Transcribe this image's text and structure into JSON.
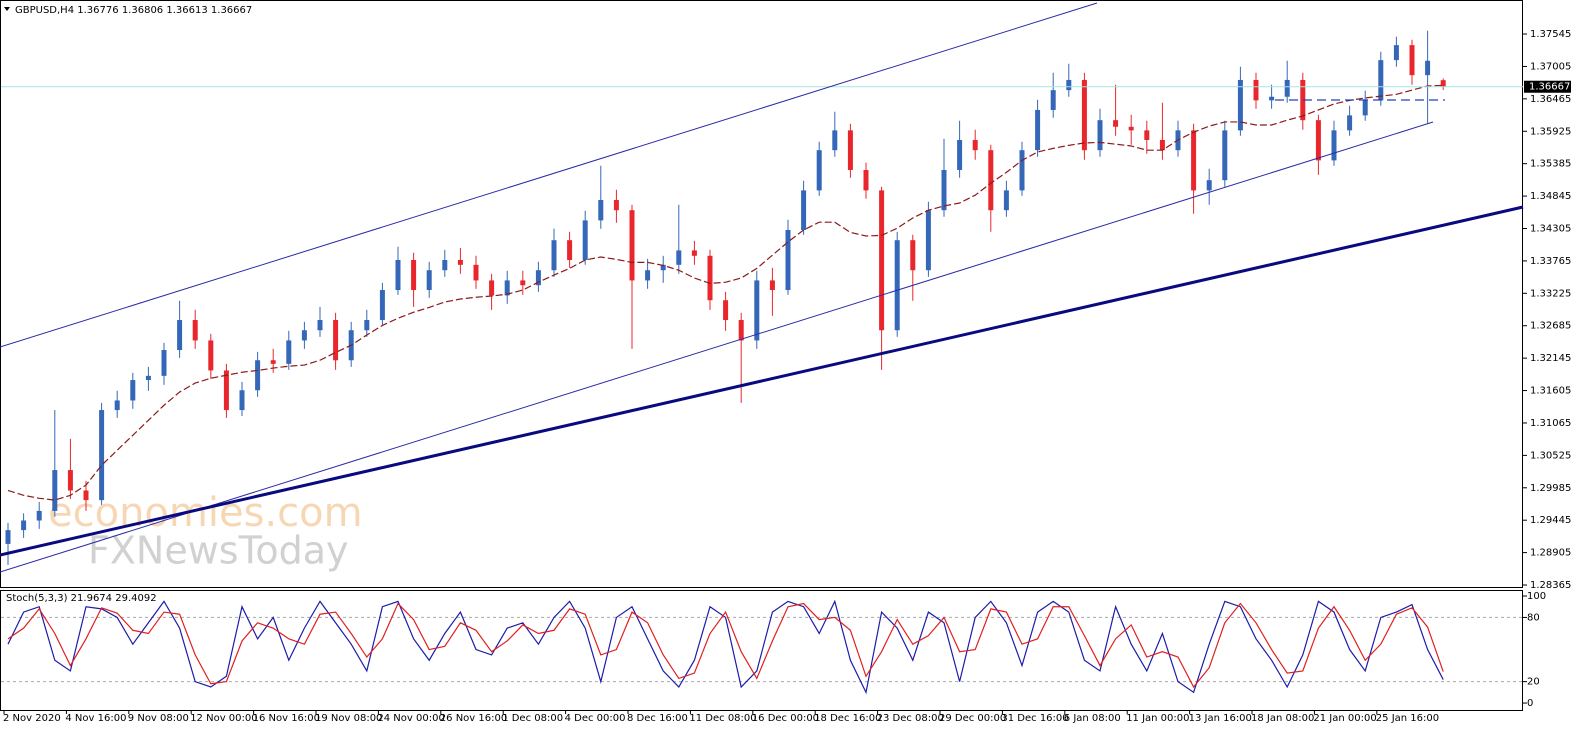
{
  "watermark": [
    "economies.com",
    "FXNewsToday"
  ],
  "chart_data": [
    {
      "type": "candlestick",
      "title": "GBPUSD,H4",
      "categories": [
        "2 Nov 2020",
        null,
        null,
        null,
        "4 Nov 16:00",
        null,
        null,
        null,
        "9 Nov 08:00",
        null,
        null,
        null,
        "12 Nov 00:00",
        null,
        null,
        null,
        "16 Nov 16:00",
        null,
        null,
        null,
        "19 Nov 08:00",
        null,
        null,
        null,
        "24 Nov 00:00",
        null,
        null,
        null,
        "26 Nov 16:00",
        null,
        null,
        null,
        "1 Dec 08:00",
        null,
        null,
        null,
        "4 Dec 00:00",
        null,
        null,
        null,
        "8 Dec 16:00",
        null,
        null,
        null,
        "11 Dec 08:00",
        null,
        null,
        null,
        "16 Dec 00:00",
        null,
        null,
        null,
        "18 Dec 16:00",
        null,
        null,
        null,
        "23 Dec 08:00",
        null,
        null,
        null,
        "29 Dec 00:00",
        null,
        null,
        null,
        "31 Dec 16:00",
        null,
        null,
        null,
        "6 Jan 08:00",
        null,
        null,
        null,
        "11 Jan 00:00",
        null,
        null,
        null,
        "13 Jan 16:00",
        null,
        null,
        null,
        "18 Jan 08:00",
        null,
        null,
        null,
        "21 Jan 00:00",
        null,
        null,
        null,
        "25 Jan 16:00",
        null,
        null,
        null,
        null
      ],
      "candles": [
        [
          1.2905,
          1.294,
          1.287,
          1.2928
        ],
        [
          1.2928,
          1.2956,
          1.2915,
          1.2944
        ],
        [
          1.2944,
          1.2975,
          1.293,
          1.296
        ],
        [
          1.296,
          1.3128,
          1.295,
          1.3028
        ],
        [
          1.3028,
          1.308,
          1.298,
          1.2994
        ],
        [
          1.2994,
          1.301,
          1.296,
          1.2978
        ],
        [
          1.2978,
          1.314,
          1.297,
          1.3128
        ],
        [
          1.3128,
          1.316,
          1.3115,
          1.3144
        ],
        [
          1.3144,
          1.319,
          1.313,
          1.3178
        ],
        [
          1.3178,
          1.32,
          1.316,
          1.3185
        ],
        [
          1.3185,
          1.324,
          1.317,
          1.3228
        ],
        [
          1.3228,
          1.331,
          1.3215,
          1.3278
        ],
        [
          1.3278,
          1.3295,
          1.323,
          1.3244
        ],
        [
          1.3244,
          1.3255,
          1.318,
          1.3194
        ],
        [
          1.3194,
          1.3205,
          1.3115,
          1.3128
        ],
        [
          1.3128,
          1.3175,
          1.3118,
          1.3161
        ],
        [
          1.3161,
          1.3225,
          1.315,
          1.3211
        ],
        [
          1.3211,
          1.323,
          1.319,
          1.3205
        ],
        [
          1.3205,
          1.326,
          1.3195,
          1.3244
        ],
        [
          1.3244,
          1.3275,
          1.323,
          1.3261
        ],
        [
          1.3261,
          1.33,
          1.325,
          1.3278
        ],
        [
          1.3278,
          1.329,
          1.3195,
          1.3211
        ],
        [
          1.3211,
          1.3275,
          1.32,
          1.3261
        ],
        [
          1.3261,
          1.3295,
          1.325,
          1.3278
        ],
        [
          1.3278,
          1.334,
          1.327,
          1.3328
        ],
        [
          1.3328,
          1.34,
          1.332,
          1.3378
        ],
        [
          1.3378,
          1.339,
          1.33,
          1.3328
        ],
        [
          1.3328,
          1.3375,
          1.3315,
          1.3361
        ],
        [
          1.3361,
          1.3395,
          1.335,
          1.3378
        ],
        [
          1.3378,
          1.3398,
          1.3355,
          1.337
        ],
        [
          1.337,
          1.3385,
          1.333,
          1.3344
        ],
        [
          1.3344,
          1.3355,
          1.3295,
          1.3319
        ],
        [
          1.3319,
          1.336,
          1.3305,
          1.3344
        ],
        [
          1.3344,
          1.336,
          1.332,
          1.3336
        ],
        [
          1.3336,
          1.3375,
          1.3325,
          1.3361
        ],
        [
          1.3361,
          1.343,
          1.335,
          1.3411
        ],
        [
          1.3411,
          1.3425,
          1.3365,
          1.3378
        ],
        [
          1.3378,
          1.346,
          1.337,
          1.3444
        ],
        [
          1.3444,
          1.3535,
          1.343,
          1.3478
        ],
        [
          1.3478,
          1.3495,
          1.344,
          1.3461
        ],
        [
          1.3461,
          1.347,
          1.323,
          1.3344
        ],
        [
          1.3344,
          1.338,
          1.333,
          1.3361
        ],
        [
          1.3361,
          1.3385,
          1.334,
          1.337
        ],
        [
          1.337,
          1.347,
          1.3355,
          1.3394
        ],
        [
          1.3394,
          1.341,
          1.337,
          1.3385
        ],
        [
          1.3385,
          1.3395,
          1.3295,
          1.3311
        ],
        [
          1.3311,
          1.3325,
          1.326,
          1.3278
        ],
        [
          1.3278,
          1.329,
          1.314,
          1.3244
        ],
        [
          1.3244,
          1.336,
          1.323,
          1.3344
        ],
        [
          1.3344,
          1.3365,
          1.3285,
          1.3328
        ],
        [
          1.3328,
          1.3445,
          1.332,
          1.3428
        ],
        [
          1.3428,
          1.351,
          1.342,
          1.3494
        ],
        [
          1.3494,
          1.3575,
          1.3485,
          1.3561
        ],
        [
          1.3561,
          1.3625,
          1.355,
          1.3594
        ],
        [
          1.3594,
          1.3605,
          1.3515,
          1.3528
        ],
        [
          1.3528,
          1.354,
          1.348,
          1.3494
        ],
        [
          1.3494,
          1.35,
          1.3195,
          1.3261
        ],
        [
          1.3261,
          1.3425,
          1.325,
          1.3411
        ],
        [
          1.3411,
          1.342,
          1.331,
          1.3361
        ],
        [
          1.3361,
          1.3475,
          1.335,
          1.3461
        ],
        [
          1.3461,
          1.358,
          1.345,
          1.3528
        ],
        [
          1.3528,
          1.361,
          1.3515,
          1.3578
        ],
        [
          1.3578,
          1.3595,
          1.3545,
          1.3561
        ],
        [
          1.3561,
          1.357,
          1.3425,
          1.3461
        ],
        [
          1.3461,
          1.351,
          1.345,
          1.3494
        ],
        [
          1.3494,
          1.3575,
          1.3485,
          1.3561
        ],
        [
          1.3561,
          1.3645,
          1.355,
          1.3628
        ],
        [
          1.3628,
          1.369,
          1.3615,
          1.3661
        ],
        [
          1.3661,
          1.3705,
          1.365,
          1.3678
        ],
        [
          1.3678,
          1.369,
          1.3545,
          1.3561
        ],
        [
          1.3561,
          1.363,
          1.355,
          1.3611
        ],
        [
          1.3611,
          1.367,
          1.3585,
          1.36
        ],
        [
          1.36,
          1.362,
          1.357,
          1.3594
        ],
        [
          1.3594,
          1.361,
          1.3555,
          1.3578
        ],
        [
          1.3578,
          1.364,
          1.3545,
          1.3561
        ],
        [
          1.3561,
          1.361,
          1.355,
          1.3594
        ],
        [
          1.3594,
          1.3605,
          1.3455,
          1.3494
        ],
        [
          1.3494,
          1.353,
          1.347,
          1.3511
        ],
        [
          1.3511,
          1.361,
          1.35,
          1.3594
        ],
        [
          1.3594,
          1.37,
          1.3585,
          1.3678
        ],
        [
          1.3678,
          1.369,
          1.363,
          1.3644
        ],
        [
          1.3644,
          1.367,
          1.363,
          1.365
        ],
        [
          1.365,
          1.371,
          1.364,
          1.3678
        ],
        [
          1.3678,
          1.369,
          1.3595,
          1.3611
        ],
        [
          1.3611,
          1.362,
          1.352,
          1.3544
        ],
        [
          1.3544,
          1.361,
          1.3535,
          1.3594
        ],
        [
          1.3594,
          1.3635,
          1.3585,
          1.3619
        ],
        [
          1.3619,
          1.366,
          1.361,
          1.3644
        ],
        [
          1.3644,
          1.3725,
          1.3635,
          1.3711
        ],
        [
          1.3711,
          1.375,
          1.37,
          1.3736
        ],
        [
          1.3736,
          1.3745,
          1.367,
          1.3686
        ],
        [
          1.3686,
          1.376,
          1.3605,
          1.371
        ],
        [
          1.36776,
          1.36806,
          1.36613,
          1.36667
        ]
      ],
      "up_color": "#3567b8",
      "down_color": "#e8262b",
      "ma": {
        "color": "#8b1a1a",
        "values": [
          1.2994,
          1.2986,
          1.2981,
          1.2978,
          1.2986,
          1.3003,
          1.3036,
          1.3061,
          1.3086,
          1.3111,
          1.3136,
          1.3158,
          1.3173,
          1.3181,
          1.3186,
          1.3191,
          1.3194,
          1.3198,
          1.3201,
          1.3203,
          1.3211,
          1.3224,
          1.3236,
          1.3253,
          1.3269,
          1.3281,
          1.3291,
          1.3299,
          1.3308,
          1.3313,
          1.3316,
          1.3318,
          1.3321,
          1.3328,
          1.3341,
          1.3353,
          1.3364,
          1.3378,
          1.3383,
          1.3379,
          1.3374,
          1.3374,
          1.3369,
          1.3361,
          1.3348,
          1.3339,
          1.3341,
          1.3348,
          1.3364,
          1.3386,
          1.3408,
          1.3428,
          1.3441,
          1.3441,
          1.3424,
          1.3418,
          1.3419,
          1.3431,
          1.3448,
          1.3461,
          1.3468,
          1.3473,
          1.3486,
          1.3506,
          1.3524,
          1.3544,
          1.3558,
          1.3564,
          1.3569,
          1.3573,
          1.3574,
          1.3571,
          1.3568,
          1.3561,
          1.3561,
          1.3578,
          1.3591,
          1.3601,
          1.3608,
          1.3608,
          1.3603,
          1.3603,
          1.3611,
          1.3618,
          1.3628,
          1.3638,
          1.3644,
          1.3648,
          1.3651,
          1.3654,
          1.3661,
          1.3668,
          1.3669
        ]
      },
      "ylim": [
        1.28332,
        1.38112
      ],
      "yticks": [
        1.37545,
        1.37005,
        1.36465,
        1.35925,
        1.35385,
        1.34845,
        1.34305,
        1.33765,
        1.33225,
        1.32685,
        1.32145,
        1.31605,
        1.31065,
        1.30525,
        1.29985,
        1.29445,
        1.28905,
        1.28365
      ],
      "price_line_color": "#a8e4e4"
    },
    {
      "type": "line",
      "title": "Stoch(5,3,3)",
      "series": [
        {
          "color": "#1c1caa",
          "values": [
            55,
            85,
            90,
            40,
            30,
            90,
            88,
            80,
            55,
            75,
            95,
            70,
            20,
            15,
            25,
            90,
            60,
            80,
            40,
            70,
            95,
            75,
            55,
            30,
            90,
            95,
            60,
            40,
            65,
            85,
            50,
            45,
            70,
            75,
            55,
            80,
            95,
            70,
            20,
            80,
            90,
            60,
            30,
            15,
            40,
            90,
            80,
            15,
            30,
            85,
            95,
            90,
            65,
            95,
            40,
            10,
            85,
            70,
            40,
            85,
            75,
            20,
            80,
            95,
            75,
            35,
            85,
            95,
            85,
            40,
            30,
            90,
            55,
            30,
            65,
            20,
            10,
            55,
            95,
            90,
            60,
            40,
            15,
            45,
            95,
            85,
            50,
            30,
            80,
            85,
            92,
            50,
            21.9674
          ]
        },
        {
          "color": "#e02020",
          "values": [
            60,
            70,
            88,
            65,
            35,
            60,
            89,
            84,
            68,
            65,
            85,
            83,
            45,
            18,
            20,
            58,
            75,
            70,
            60,
            55,
            83,
            85,
            65,
            43,
            60,
            93,
            78,
            50,
            53,
            75,
            68,
            48,
            58,
            73,
            65,
            68,
            88,
            83,
            45,
            50,
            85,
            75,
            45,
            23,
            28,
            65,
            85,
            48,
            23,
            58,
            90,
            93,
            78,
            80,
            68,
            25,
            48,
            78,
            55,
            63,
            80,
            48,
            50,
            88,
            85,
            55,
            60,
            90,
            90,
            63,
            35,
            60,
            73,
            43,
            48,
            43,
            15,
            33,
            75,
            93,
            75,
            50,
            28,
            30,
            70,
            90,
            68,
            40,
            55,
            83,
            89,
            71,
            29.4092
          ]
        }
      ],
      "ylim": [
        -6.5,
        104.7
      ],
      "yticks": [
        0,
        20,
        80,
        100
      ],
      "grid_ticks": [
        20,
        80
      ]
    }
  ]
}
